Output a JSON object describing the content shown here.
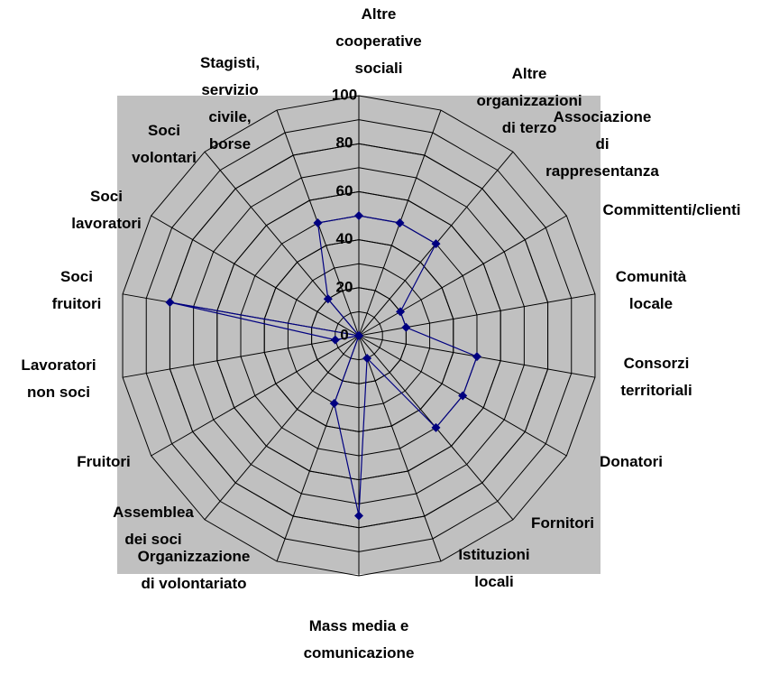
{
  "chart_data": {
    "type": "radar",
    "categories": [
      "Altre cooperative sociali",
      "Altre organizzazioni di terzo",
      "Associazione di rappresentanza",
      "Committenti/clienti",
      "Comunità locale",
      "Consorzi territoriali",
      "Donatori",
      "Fornitori",
      "Istituzioni locali",
      "Mass media e comunicazione",
      "Organizzazione di volontariato",
      "Assemblea dei soci",
      "Fruitori",
      "Lavoratori non soci",
      "Soci fruitori",
      "Soci lavoratori",
      "Soci volontari",
      "Stagisti, servizio civile, borse"
    ],
    "values": [
      50,
      50,
      50,
      20,
      20,
      50,
      50,
      50,
      10,
      75,
      30,
      0,
      0,
      10,
      80,
      0,
      20,
      50
    ],
    "color": "#000080",
    "ylim": [
      0,
      100
    ],
    "yticks": [
      0,
      20,
      40,
      60,
      80,
      100
    ],
    "minor_grid_step": 10,
    "grid": true,
    "background": "#c0c0c0"
  }
}
